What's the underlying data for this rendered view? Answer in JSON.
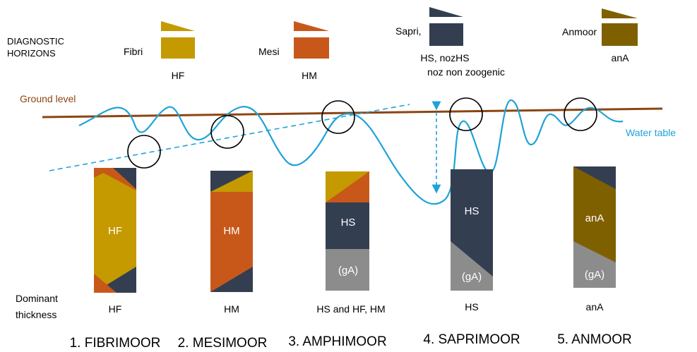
{
  "header": {
    "diagnostic_line1": "DIAGNOSTIC",
    "diagnostic_line2": "HORIZONS"
  },
  "legend": [
    {
      "name": "Fibri",
      "code": "HF",
      "color": "#C49A00"
    },
    {
      "name": "Mesi",
      "code": "HM",
      "color": "#C8581A"
    },
    {
      "name": "Sapri,",
      "code": "HS, nozHS",
      "note": "noz non zoogenic",
      "color": "#333F50"
    },
    {
      "name": "Anmoor",
      "code": "anA",
      "color": "#7F6000"
    }
  ],
  "labels": {
    "ground_level": "Ground level",
    "water_table": "Water table",
    "dominant_line1": "Dominant",
    "dominant_line2": "thickness"
  },
  "colors": {
    "ground": "#8B4513",
    "water": "#1FA2D8",
    "fibri": "#C49A00",
    "mesi": "#C8581A",
    "sapri": "#333F50",
    "anmoor": "#7F6000",
    "gley": "#8C8C8C"
  },
  "profiles": [
    {
      "column_label": "HF",
      "dominant": "HF",
      "title": "1. FIBRIMOOR"
    },
    {
      "column_label": "HM",
      "dominant": "HM",
      "title": "2. MESIMOOR"
    },
    {
      "column_label": "HS",
      "lower_label": "(gA)",
      "dominant": "HS and HF, HM",
      "title": "3. AMPHIMOOR"
    },
    {
      "column_label": "HS",
      "lower_label": "(gA)",
      "dominant": "HS",
      "title": "4. SAPRIMOOR"
    },
    {
      "column_label": "anA",
      "lower_label": "(gA)",
      "dominant": "anA",
      "title": "5. ANMOOR"
    }
  ]
}
